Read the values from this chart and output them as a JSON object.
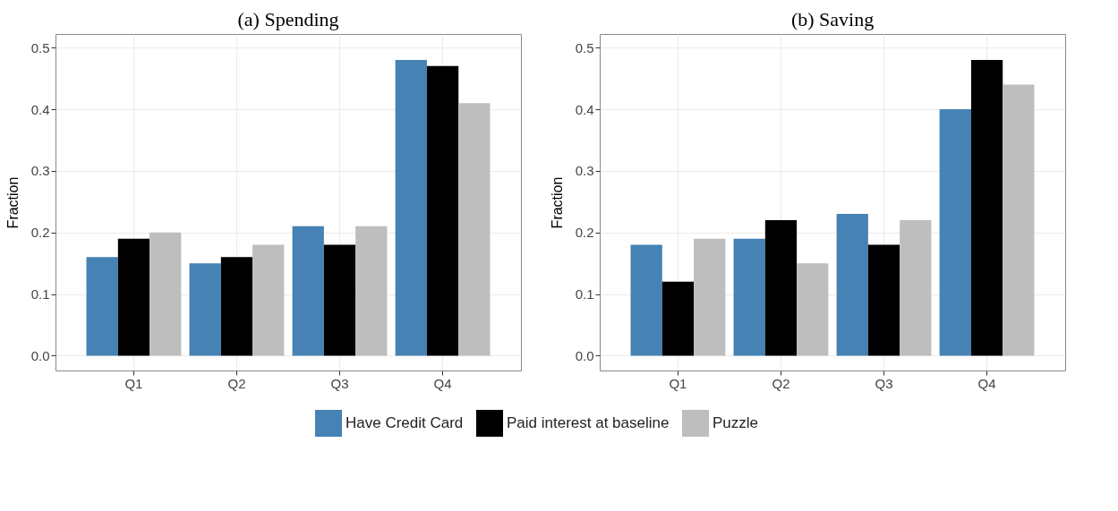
{
  "chart_data": [
    {
      "type": "bar",
      "title": "(a) Spending",
      "ylabel": "Fraction",
      "categories": [
        "Q1",
        "Q2",
        "Q3",
        "Q4"
      ],
      "series": [
        {
          "name": "Have Credit Card",
          "color": "#4682b4",
          "values": [
            0.16,
            0.15,
            0.21,
            0.48
          ]
        },
        {
          "name": "Paid interest at baseline",
          "color": "#000000",
          "values": [
            0.19,
            0.16,
            0.18,
            0.47
          ]
        },
        {
          "name": "Puzzle",
          "color": "#bebebe",
          "values": [
            0.2,
            0.18,
            0.21,
            0.41
          ]
        }
      ],
      "ylim": [
        -0.024,
        0.522
      ],
      "yticks": [
        {
          "value": 0,
          "label": "0.0"
        },
        0.1,
        0.2,
        0.3,
        0.4,
        0.5
      ],
      "grid": true,
      "legend": "bottom"
    },
    {
      "type": "bar",
      "title": "(b) Saving",
      "ylabel": "Fraction",
      "categories": [
        "Q1",
        "Q2",
        "Q3",
        "Q4"
      ],
      "series": [
        {
          "name": "Have Credit Card",
          "color": "#4682b4",
          "values": [
            0.18,
            0.19,
            0.23,
            0.4
          ]
        },
        {
          "name": "Paid interest at baseline",
          "color": "#000000",
          "values": [
            0.12,
            0.22,
            0.18,
            0.48
          ]
        },
        {
          "name": "Puzzle",
          "color": "#bebebe",
          "values": [
            0.19,
            0.15,
            0.22,
            0.44
          ]
        }
      ],
      "ylim": [
        -0.024,
        0.522
      ],
      "yticks": [
        {
          "value": 0,
          "label": "0.0"
        },
        0.1,
        0.2,
        0.3,
        0.4,
        0.5
      ],
      "grid": true,
      "legend": "bottom"
    }
  ]
}
